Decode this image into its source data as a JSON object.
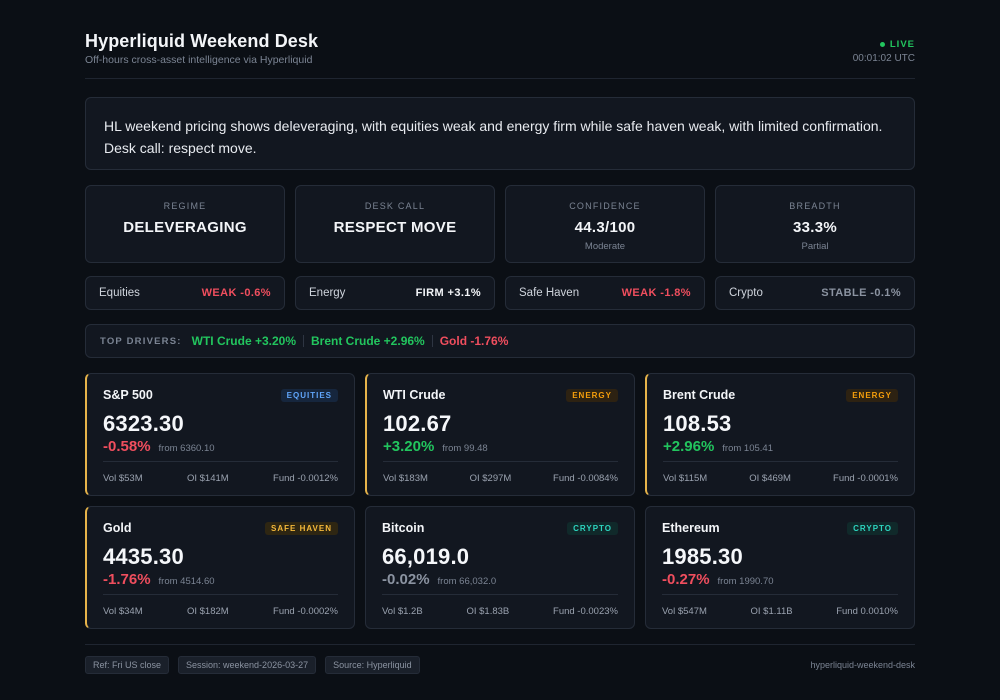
{
  "header": {
    "title": "Hyperliquid Weekend Desk",
    "subtitle": "Off-hours cross-asset intelligence via Hyperliquid",
    "live_label": "LIVE",
    "time": "00:01:02 UTC"
  },
  "summary": "HL weekend pricing shows deleveraging, with equities weak and energy firm while safe haven weak, with limited confirmation. Desk call: respect move.",
  "metrics": [
    {
      "label": "REGIME",
      "value": "DELEVERAGING",
      "sub": ""
    },
    {
      "label": "DESK CALL",
      "value": "RESPECT MOVE",
      "sub": ""
    },
    {
      "label": "CONFIDENCE",
      "value": "44.3/100",
      "sub": "Moderate"
    },
    {
      "label": "BREADTH",
      "value": "33.3%",
      "sub": "Partial"
    }
  ],
  "sectors": [
    {
      "name": "Equities",
      "status": "WEAK -0.6%",
      "tone": "down"
    },
    {
      "name": "Energy",
      "status": "FIRM +3.1%",
      "tone": "white"
    },
    {
      "name": "Safe Haven",
      "status": "WEAK -1.8%",
      "tone": "down"
    },
    {
      "name": "Crypto",
      "status": "STABLE -0.1%",
      "tone": "flat"
    }
  ],
  "drivers": {
    "label": "TOP DRIVERS:",
    "items": [
      {
        "text": "WTI Crude +3.20%",
        "tone": "up"
      },
      {
        "text": "Brent Crude +2.96%",
        "tone": "up"
      },
      {
        "text": "Gold -1.76%",
        "tone": "down"
      }
    ]
  },
  "cards": [
    {
      "name": "S&P 500",
      "tag": "EQUITIES",
      "tag_class": "equities",
      "price": "6323.30",
      "change": "-0.58%",
      "tone": "down",
      "from": "from 6360.10",
      "vol": "Vol $53M",
      "oi": "OI $141M",
      "fund": "Fund -0.0012%",
      "highlight": true
    },
    {
      "name": "WTI Crude",
      "tag": "ENERGY",
      "tag_class": "energy",
      "price": "102.67",
      "change": "+3.20%",
      "tone": "up",
      "from": "from 99.48",
      "vol": "Vol $183M",
      "oi": "OI $297M",
      "fund": "Fund -0.0084%",
      "highlight": true
    },
    {
      "name": "Brent Crude",
      "tag": "ENERGY",
      "tag_class": "energy",
      "price": "108.53",
      "change": "+2.96%",
      "tone": "up",
      "from": "from 105.41",
      "vol": "Vol $115M",
      "oi": "OI $469M",
      "fund": "Fund -0.0001%",
      "highlight": true
    },
    {
      "name": "Gold",
      "tag": "SAFE HAVEN",
      "tag_class": "safe",
      "price": "4435.30",
      "change": "-1.76%",
      "tone": "down",
      "from": "from 4514.60",
      "vol": "Vol $34M",
      "oi": "OI $182M",
      "fund": "Fund -0.0002%",
      "highlight": true
    },
    {
      "name": "Bitcoin",
      "tag": "CRYPTO",
      "tag_class": "crypto",
      "price": "66,019.0",
      "change": "-0.02%",
      "tone": "flat",
      "from": "from 66,032.0",
      "vol": "Vol $1.2B",
      "oi": "OI $1.83B",
      "fund": "Fund -0.0023%",
      "highlight": false
    },
    {
      "name": "Ethereum",
      "tag": "CRYPTO",
      "tag_class": "crypto",
      "price": "1985.30",
      "change": "-0.27%",
      "tone": "down",
      "from": "from 1990.70",
      "vol": "Vol $547M",
      "oi": "OI $1.11B",
      "fund": "Fund 0.0010%",
      "highlight": false
    }
  ],
  "footer": {
    "chips": [
      "Ref: Fri US close",
      "Session: weekend-2026-03-27",
      "Source: Hyperliquid"
    ],
    "brand": "hyperliquid-weekend-desk"
  },
  "colors": {
    "up": "#22c55e",
    "down": "#f04e5e",
    "flat": "#8b93a1",
    "highlight_border": "#e6b34a",
    "background": "#0b0f15",
    "panel": "#121720"
  }
}
